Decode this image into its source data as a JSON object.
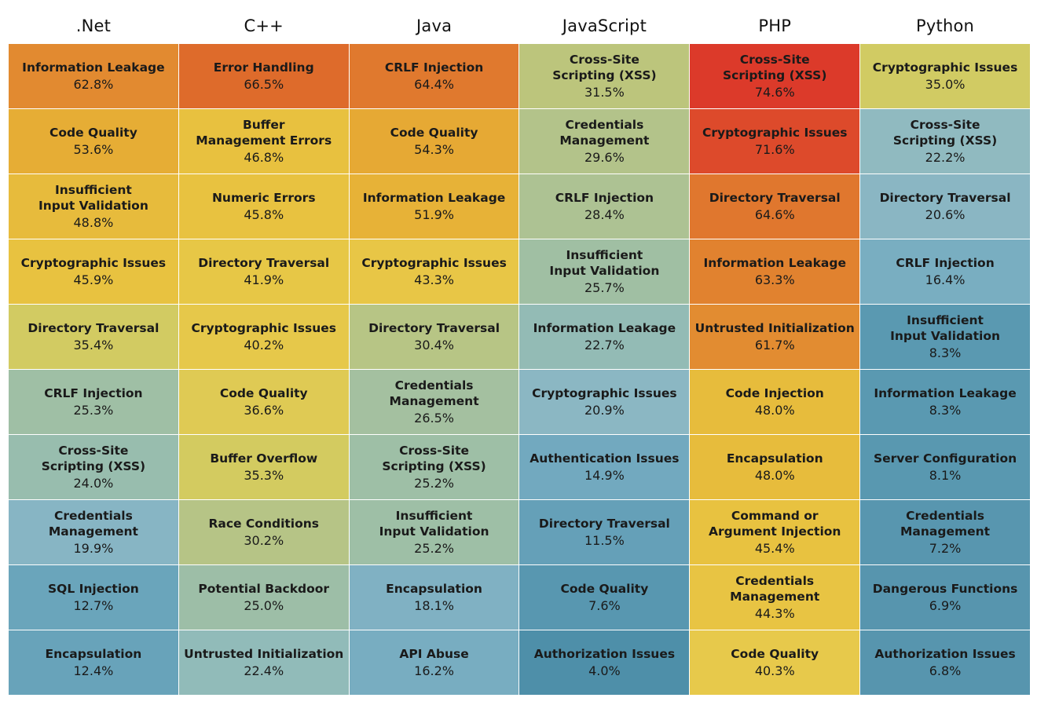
{
  "chart_data": {
    "type": "heatmap",
    "title": "",
    "columns": [
      {
        "name": ".Net",
        "cells": [
          {
            "label": "Information Leakage",
            "value": "62.8%",
            "pct": 62.8,
            "color": "#e28a30"
          },
          {
            "label": "Code Quality",
            "value": "53.6%",
            "pct": 53.6,
            "color": "#e6ad35"
          },
          {
            "label": "Insufficient\nInput Validation",
            "value": "48.8%",
            "pct": 48.8,
            "color": "#e7bb3c"
          },
          {
            "label": "Cryptographic Issues",
            "value": "45.9%",
            "pct": 45.9,
            "color": "#e8c240"
          },
          {
            "label": "Directory Traversal",
            "value": "35.4%",
            "pct": 35.4,
            "color": "#d2cb62"
          },
          {
            "label": "CRLF Injection",
            "value": "25.3%",
            "pct": 25.3,
            "color": "#9fbfa5"
          },
          {
            "label": "Cross-Site\nScripting (XSS)",
            "value": "24.0%",
            "pct": 24.0,
            "color": "#98bdae"
          },
          {
            "label": "Credentials\nManagement",
            "value": "19.9%",
            "pct": 19.9,
            "color": "#87b5c4"
          },
          {
            "label": "SQL Injection",
            "value": "12.7%",
            "pct": 12.7,
            "color": "#6aa5bb"
          },
          {
            "label": "Encapsulation",
            "value": "12.4%",
            "pct": 12.4,
            "color": "#68a3ba"
          }
        ]
      },
      {
        "name": "C++",
        "cells": [
          {
            "label": "Error Handling",
            "value": "66.5%",
            "pct": 66.5,
            "color": "#de6b2b"
          },
          {
            "label": "Buffer\nManagement Errors",
            "value": "46.8%",
            "pct": 46.8,
            "color": "#e8c13f"
          },
          {
            "label": "Numeric Errors",
            "value": "45.8%",
            "pct": 45.8,
            "color": "#e8c240"
          },
          {
            "label": "Directory Traversal",
            "value": "41.9%",
            "pct": 41.9,
            "color": "#e7c746"
          },
          {
            "label": "Cryptographic Issues",
            "value": "40.2%",
            "pct": 40.2,
            "color": "#e6c84a"
          },
          {
            "label": "Code Quality",
            "value": "36.6%",
            "pct": 36.6,
            "color": "#dfca54"
          },
          {
            "label": "Buffer Overflow",
            "value": "35.3%",
            "pct": 35.3,
            "color": "#d3cb60"
          },
          {
            "label": "Race Conditions",
            "value": "30.2%",
            "pct": 30.2,
            "color": "#b6c486"
          },
          {
            "label": "Potential Backdoor",
            "value": "25.0%",
            "pct": 25.0,
            "color": "#9dbea7"
          },
          {
            "label": "Untrusted Initialization",
            "value": "22.4%",
            "pct": 22.4,
            "color": "#91bbb9"
          }
        ]
      },
      {
        "name": "Java",
        "cells": [
          {
            "label": "CRLF Injection",
            "value": "64.4%",
            "pct": 64.4,
            "color": "#e0792e"
          },
          {
            "label": "Code Quality",
            "value": "54.3%",
            "pct": 54.3,
            "color": "#e6a934"
          },
          {
            "label": "Information Leakage",
            "value": "51.9%",
            "pct": 51.9,
            "color": "#e7b237"
          },
          {
            "label": "Cryptographic Issues",
            "value": "43.3%",
            "pct": 43.3,
            "color": "#e8c646"
          },
          {
            "label": "Directory Traversal",
            "value": "30.4%",
            "pct": 30.4,
            "color": "#b7c585"
          },
          {
            "label": "Credentials\nManagement",
            "value": "26.5%",
            "pct": 26.5,
            "color": "#a4c0a0"
          },
          {
            "label": "Cross-Site\nScripting (XSS)",
            "value": "25.2%",
            "pct": 25.2,
            "color": "#9ebfa6"
          },
          {
            "label": "Insufficient\nInput Validation",
            "value": "25.2%",
            "pct": 25.2,
            "color": "#9ebfa6"
          },
          {
            "label": "Encapsulation",
            "value": "18.1%",
            "pct": 18.1,
            "color": "#80b1c3"
          },
          {
            "label": "API Abuse",
            "value": "16.2%",
            "pct": 16.2,
            "color": "#78adc1"
          }
        ]
      },
      {
        "name": "JavaScript",
        "cells": [
          {
            "label": "Cross-Site\nScripting (XSS)",
            "value": "31.5%",
            "pct": 31.5,
            "color": "#bcc57c"
          },
          {
            "label": "Credentials\nManagement",
            "value": "29.6%",
            "pct": 29.6,
            "color": "#b3c38a"
          },
          {
            "label": "CRLF Injection",
            "value": "28.4%",
            "pct": 28.4,
            "color": "#adc293"
          },
          {
            "label": "Insufficient\nInput Validation",
            "value": "25.7%",
            "pct": 25.7,
            "color": "#a0bfa3"
          },
          {
            "label": "Information Leakage",
            "value": "22.7%",
            "pct": 22.7,
            "color": "#93bbb5"
          },
          {
            "label": "Cryptographic Issues",
            "value": "20.9%",
            "pct": 20.9,
            "color": "#8bb7c3"
          },
          {
            "label": "Authentication Issues",
            "value": "14.9%",
            "pct": 14.9,
            "color": "#72a9bf"
          },
          {
            "label": "Directory Traversal",
            "value": "11.5%",
            "pct": 11.5,
            "color": "#65a0b8"
          },
          {
            "label": "Code Quality",
            "value": "7.6%",
            "pct": 7.6,
            "color": "#5897b0"
          },
          {
            "label": "Authorization Issues",
            "value": "4.0%",
            "pct": 4.0,
            "color": "#4e8fa9"
          }
        ]
      },
      {
        "name": "PHP",
        "cells": [
          {
            "label": "Cross-Site\nScripting (XSS)",
            "value": "74.6%",
            "pct": 74.6,
            "color": "#dc3a2a"
          },
          {
            "label": "Cryptographic Issues",
            "value": "71.6%",
            "pct": 71.6,
            "color": "#dd4a2b"
          },
          {
            "label": "Directory Traversal",
            "value": "64.6%",
            "pct": 64.6,
            "color": "#e0772e"
          },
          {
            "label": "Information Leakage",
            "value": "63.3%",
            "pct": 63.3,
            "color": "#e1822f"
          },
          {
            "label": "Untrusted Initialization",
            "value": "61.7%",
            "pct": 61.7,
            "color": "#e28c31"
          },
          {
            "label": "Code Injection",
            "value": "48.0%",
            "pct": 48.0,
            "color": "#e7bc3c"
          },
          {
            "label": "Encapsulation",
            "value": "48.0%",
            "pct": 48.0,
            "color": "#e7bc3c"
          },
          {
            "label": "Command or\nArgument Injection",
            "value": "45.4%",
            "pct": 45.4,
            "color": "#e8c240"
          },
          {
            "label": "Credentials\nManagement",
            "value": "44.3%",
            "pct": 44.3,
            "color": "#e8c443"
          },
          {
            "label": "Code Quality",
            "value": "40.3%",
            "pct": 40.3,
            "color": "#e7c94b"
          }
        ]
      },
      {
        "name": "Python",
        "cells": [
          {
            "label": "Cryptographic Issues",
            "value": "35.0%",
            "pct": 35.0,
            "color": "#d1cb63"
          },
          {
            "label": "Cross-Site\nScripting (XSS)",
            "value": "22.2%",
            "pct": 22.2,
            "color": "#90bac0"
          },
          {
            "label": "Directory Traversal",
            "value": "20.6%",
            "pct": 20.6,
            "color": "#8ab6c3"
          },
          {
            "label": "CRLF Injection",
            "value": "16.4%",
            "pct": 16.4,
            "color": "#79aec1"
          },
          {
            "label": "Insufficient\nInput Validation",
            "value": "8.3%",
            "pct": 8.3,
            "color": "#5a99b1"
          },
          {
            "label": "Information Leakage",
            "value": "8.3%",
            "pct": 8.3,
            "color": "#5a99b1"
          },
          {
            "label": "Server Configuration",
            "value": "8.1%",
            "pct": 8.1,
            "color": "#5998b0"
          },
          {
            "label": "Credentials\nManagement",
            "value": "7.2%",
            "pct": 7.2,
            "color": "#5896af"
          },
          {
            "label": "Dangerous Functions",
            "value": "6.9%",
            "pct": 6.9,
            "color": "#5795ae"
          },
          {
            "label": "Authorization Issues",
            "value": "6.8%",
            "pct": 6.8,
            "color": "#5795ae"
          }
        ]
      }
    ]
  }
}
